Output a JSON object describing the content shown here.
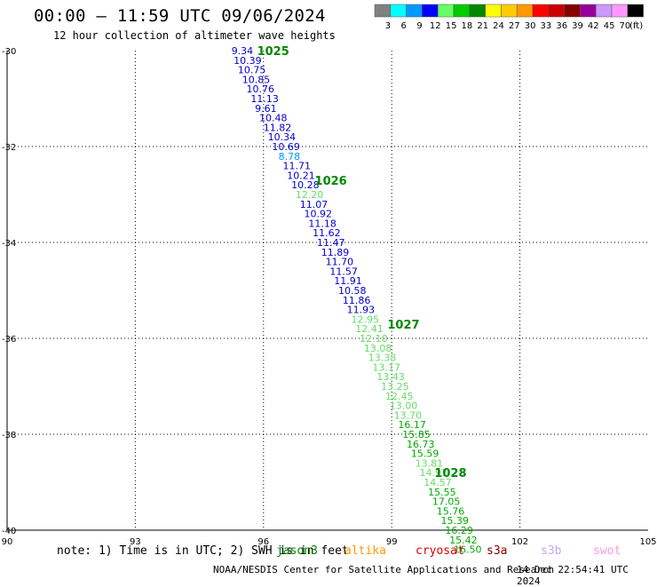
{
  "header": {
    "title": "00:00 – 11:59 UTC 09/06/2024",
    "subtitle": "12 hour collection of altimeter wave heights"
  },
  "footer": {
    "note": "note: 1) Time is in UTC; 2) SWH is in feet",
    "credit": "NOAA/NESDIS Center for Satellite Applications and Research",
    "timestamp": "14 Dec 22:54:41 UTC 2024",
    "missions": [
      {
        "label": "jason3",
        "color": "#008800"
      },
      {
        "label": "altika",
        "color": "#ff9900"
      },
      {
        "label": "cryosat",
        "color": "#dd0000"
      },
      {
        "label": "s3a",
        "color": "#880000"
      },
      {
        "label": "s3b",
        "color": "#c0a8ff"
      },
      {
        "label": "swot",
        "color": "#ff99dd"
      }
    ]
  },
  "legend": {
    "unit": "(ft)",
    "bins": [
      {
        "label": "3",
        "color": "#808080"
      },
      {
        "label": "6",
        "color": "#00ffff"
      },
      {
        "label": "9",
        "color": "#0099ff"
      },
      {
        "label": "12",
        "color": "#0000ff"
      },
      {
        "label": "15",
        "color": "#66ff66"
      },
      {
        "label": "18",
        "color": "#00cc00"
      },
      {
        "label": "21",
        "color": "#008800"
      },
      {
        "label": "24",
        "color": "#ffff00"
      },
      {
        "label": "27",
        "color": "#ffcc00"
      },
      {
        "label": "30",
        "color": "#ff9900"
      },
      {
        "label": "33",
        "color": "#ff0000"
      },
      {
        "label": "36",
        "color": "#cc0000"
      },
      {
        "label": "39",
        "color": "#880000"
      },
      {
        "label": "42",
        "color": "#990099"
      },
      {
        "label": "45",
        "color": "#cc99ff"
      },
      {
        "label": "70",
        "color": "#ff99ff"
      },
      {
        "label": "",
        "color": "#000000"
      }
    ]
  },
  "chart_data": {
    "type": "scatter",
    "xlim": [
      90,
      105
    ],
    "ylim": [
      -40,
      -30
    ],
    "xticks": [
      90,
      93,
      96,
      99,
      102,
      105
    ],
    "yticks": [
      -30,
      -32,
      -34,
      -36,
      -38,
      -40
    ],
    "grid": true,
    "colors": {
      "low": "#0000cc",
      "mid": "#66dd66",
      "high": "#00aa00",
      "time": "#008800",
      "other": "#0099ff"
    },
    "points": [
      {
        "x": 95.25,
        "y": -30.0,
        "v": "9.34",
        "c": "low"
      },
      {
        "x": 95.3,
        "y": -30.2,
        "v": "10.39",
        "c": "low"
      },
      {
        "x": 95.4,
        "y": -30.4,
        "v": "10.75",
        "c": "low"
      },
      {
        "x": 95.5,
        "y": -30.6,
        "v": "10.85",
        "c": "low"
      },
      {
        "x": 95.6,
        "y": -30.8,
        "v": "10.76",
        "c": "low"
      },
      {
        "x": 95.7,
        "y": -31.0,
        "v": "11.13",
        "c": "low"
      },
      {
        "x": 95.8,
        "y": -31.2,
        "v": "9.61",
        "c": "low"
      },
      {
        "x": 95.9,
        "y": -31.4,
        "v": "10.48",
        "c": "low"
      },
      {
        "x": 96.0,
        "y": -31.6,
        "v": "11.82",
        "c": "low"
      },
      {
        "x": 96.1,
        "y": -31.8,
        "v": "10.34",
        "c": "low"
      },
      {
        "x": 96.2,
        "y": -32.0,
        "v": "10.69",
        "c": "low"
      },
      {
        "x": 96.35,
        "y": -32.2,
        "v": "8.78",
        "c": "other"
      },
      {
        "x": 96.45,
        "y": -32.4,
        "v": "11.71",
        "c": "low"
      },
      {
        "x": 96.55,
        "y": -32.6,
        "v": "10.21",
        "c": "low"
      },
      {
        "x": 96.65,
        "y": -32.8,
        "v": "10.28",
        "c": "low"
      },
      {
        "x": 96.75,
        "y": -33.0,
        "v": "12.20",
        "c": "mid"
      },
      {
        "x": 96.85,
        "y": -33.2,
        "v": "11.07",
        "c": "low"
      },
      {
        "x": 96.95,
        "y": -33.4,
        "v": "10.92",
        "c": "low"
      },
      {
        "x": 97.05,
        "y": -33.6,
        "v": "11.18",
        "c": "low"
      },
      {
        "x": 97.15,
        "y": -33.8,
        "v": "11.62",
        "c": "low"
      },
      {
        "x": 97.25,
        "y": -34.0,
        "v": "11.47",
        "c": "low"
      },
      {
        "x": 97.35,
        "y": -34.2,
        "v": "11.89",
        "c": "low"
      },
      {
        "x": 97.45,
        "y": -34.4,
        "v": "11.70",
        "c": "low"
      },
      {
        "x": 97.55,
        "y": -34.6,
        "v": "11.57",
        "c": "low"
      },
      {
        "x": 97.65,
        "y": -34.8,
        "v": "11.91",
        "c": "low"
      },
      {
        "x": 97.75,
        "y": -35.0,
        "v": "10.58",
        "c": "low"
      },
      {
        "x": 97.85,
        "y": -35.2,
        "v": "11.86",
        "c": "low"
      },
      {
        "x": 97.95,
        "y": -35.4,
        "v": "11.93",
        "c": "low"
      },
      {
        "x": 98.05,
        "y": -35.6,
        "v": "12.95",
        "c": "mid"
      },
      {
        "x": 98.15,
        "y": -35.8,
        "v": "12.41",
        "c": "mid"
      },
      {
        "x": 98.25,
        "y": -36.0,
        "v": "12.10",
        "c": "mid"
      },
      {
        "x": 98.35,
        "y": -36.2,
        "v": "13.08",
        "c": "mid"
      },
      {
        "x": 98.45,
        "y": -36.4,
        "v": "13.38",
        "c": "mid"
      },
      {
        "x": 98.55,
        "y": -36.6,
        "v": "13.17",
        "c": "mid"
      },
      {
        "x": 98.65,
        "y": -36.8,
        "v": "13.43",
        "c": "mid"
      },
      {
        "x": 98.75,
        "y": -37.0,
        "v": "13.25",
        "c": "mid"
      },
      {
        "x": 98.85,
        "y": -37.2,
        "v": "12.45",
        "c": "mid"
      },
      {
        "x": 98.95,
        "y": -37.4,
        "v": "13.00",
        "c": "mid"
      },
      {
        "x": 99.05,
        "y": -37.6,
        "v": "13.70",
        "c": "mid"
      },
      {
        "x": 99.15,
        "y": -37.8,
        "v": "16.17",
        "c": "high"
      },
      {
        "x": 99.25,
        "y": -38.0,
        "v": "15.85",
        "c": "high"
      },
      {
        "x": 99.35,
        "y": -38.2,
        "v": "16.73",
        "c": "high"
      },
      {
        "x": 99.45,
        "y": -38.4,
        "v": "15.59",
        "c": "high"
      },
      {
        "x": 99.55,
        "y": -38.6,
        "v": "13.81",
        "c": "mid"
      },
      {
        "x": 99.65,
        "y": -38.8,
        "v": "14.97",
        "c": "mid"
      },
      {
        "x": 99.75,
        "y": -39.0,
        "v": "14.57",
        "c": "mid"
      },
      {
        "x": 99.85,
        "y": -39.2,
        "v": "15.55",
        "c": "high"
      },
      {
        "x": 99.95,
        "y": -39.4,
        "v": "17.05",
        "c": "high"
      },
      {
        "x": 100.05,
        "y": -39.6,
        "v": "15.76",
        "c": "high"
      },
      {
        "x": 100.15,
        "y": -39.8,
        "v": "15.39",
        "c": "high"
      },
      {
        "x": 100.25,
        "y": -40.0,
        "v": "16.29",
        "c": "high"
      },
      {
        "x": 100.35,
        "y": -40.2,
        "v": "15.42",
        "c": "high"
      },
      {
        "x": 100.45,
        "y": -40.4,
        "v": "16.50",
        "c": "high"
      }
    ],
    "time_labels": [
      {
        "x": 95.85,
        "y": -30.0,
        "label": "1025"
      },
      {
        "x": 97.2,
        "y": -32.7,
        "label": "1026"
      },
      {
        "x": 98.9,
        "y": -35.7,
        "label": "1027"
      },
      {
        "x": 100.0,
        "y": -38.8,
        "label": "1028"
      }
    ]
  }
}
